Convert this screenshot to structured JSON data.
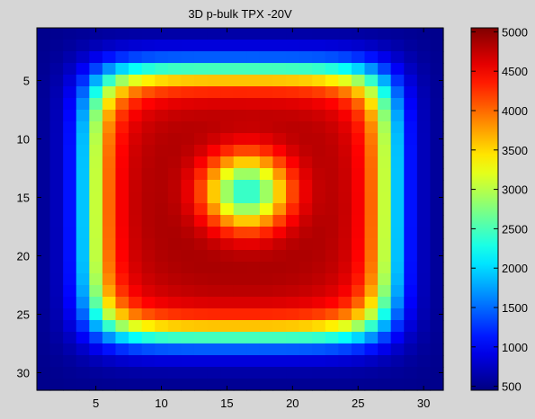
{
  "chart_data": {
    "type": "heatmap",
    "title": "3D p-bulk TPX -20V",
    "xlabel": "",
    "ylabel": "",
    "size": 31,
    "x_ticks": [
      5,
      10,
      15,
      20,
      25,
      30
    ],
    "y_ticks": [
      5,
      10,
      15,
      20,
      25,
      30
    ],
    "colorbar": {
      "colormap": "jet",
      "min": 450,
      "max": 5050,
      "ticks": [
        500,
        1000,
        1500,
        2000,
        2500,
        3000,
        3500,
        4000,
        4500,
        5000
      ]
    },
    "model": {
      "background": 500,
      "plateau_peak": 4950,
      "plateau_fill": 4600,
      "plateau_center": [
        16,
        15.5
      ],
      "plateau_half_width": 11.4,
      "plateau_edge": 0.9,
      "hole_center": [
        16.5,
        14.5
      ],
      "hole_radius": 3.6,
      "hole_min": 2300,
      "note": "value map approximated from colors"
    }
  }
}
